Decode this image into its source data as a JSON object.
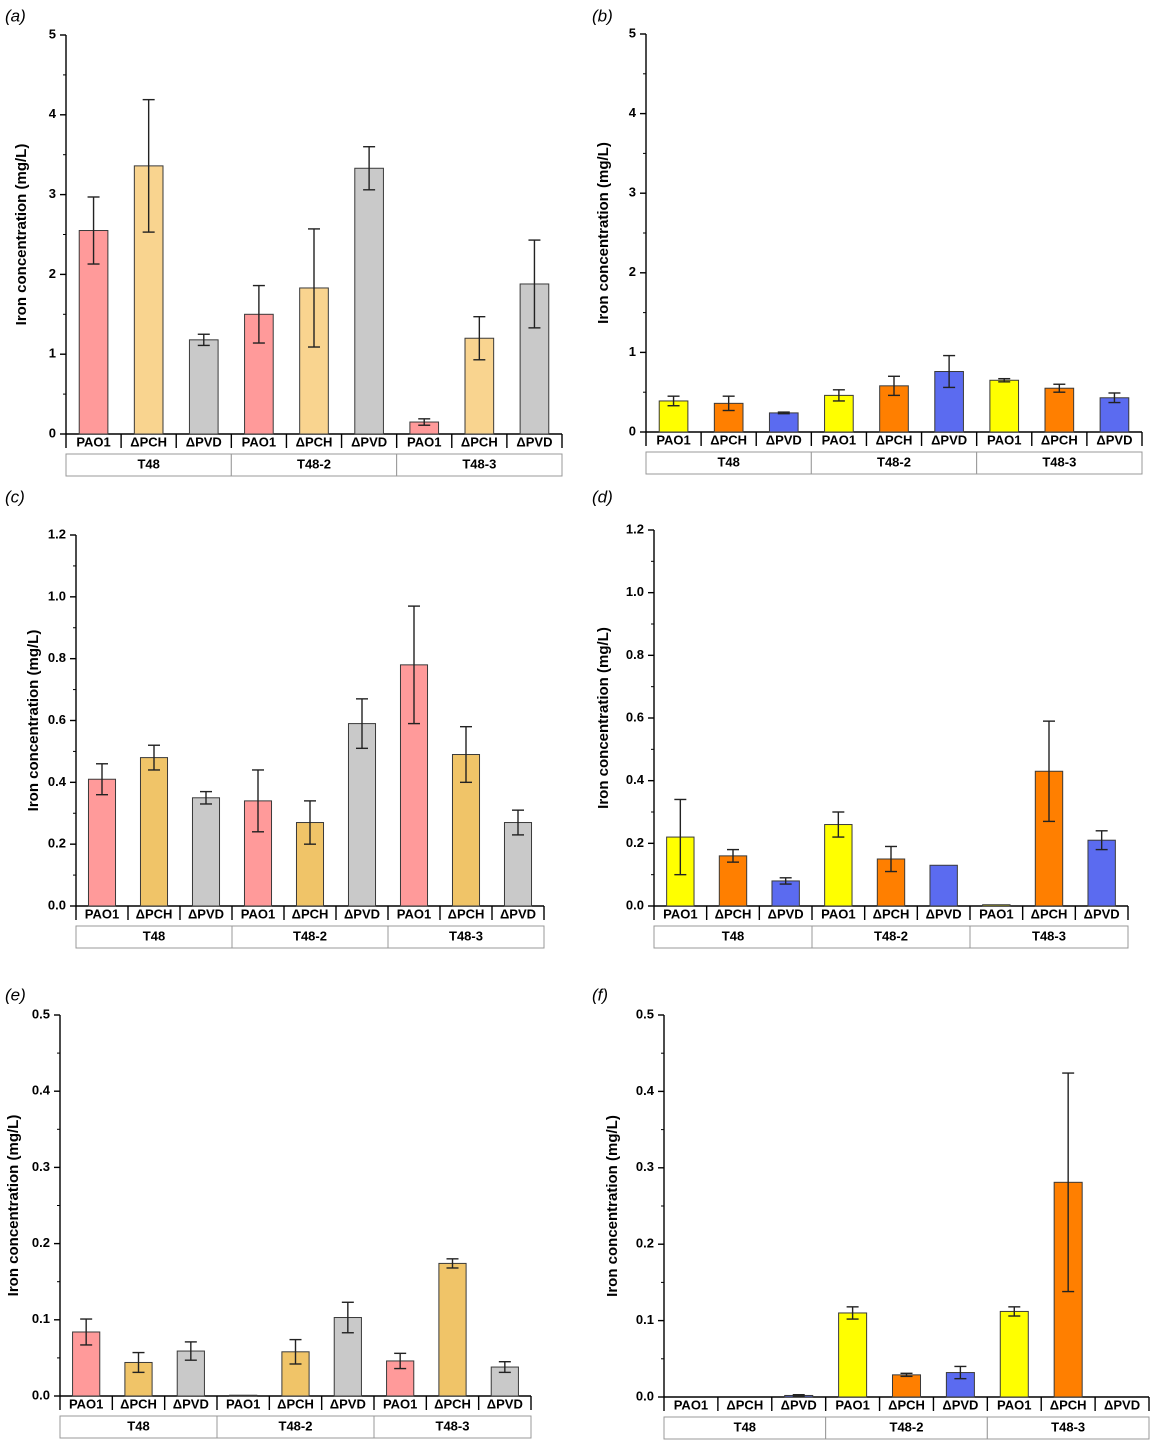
{
  "figure": {
    "y_axis_label": "Iron concentration (mg/L)",
    "category_labels": [
      "PAO1",
      "ΔPCH",
      "ΔPVD"
    ],
    "group_labels": [
      "T48",
      "T48-2",
      "T48-3"
    ]
  },
  "palettes": {
    "pastel": [
      "#ff9a9a",
      "#f9d48f",
      "#c9c9c9"
    ],
    "pastel2": [
      "#ff9a9a",
      "#f0c468",
      "#c9c9c9"
    ],
    "bright": [
      "#ffff00",
      "#ff7f00",
      "#5b6bf0"
    ]
  },
  "chart_data": [
    {
      "panel": "(a)",
      "type": "bar",
      "palette": "pastel",
      "ylim": [
        0,
        5
      ],
      "yticks": [
        "0",
        "1",
        "2",
        "3",
        "4",
        "5"
      ],
      "ylabel": "Iron concentration (mg/L)",
      "groups": [
        "T48",
        "T48-2",
        "T48-3"
      ],
      "categories": [
        "PAO1",
        "ΔPCH",
        "ΔPVD"
      ],
      "values": [
        [
          2.55,
          3.36,
          1.18
        ],
        [
          1.5,
          1.83,
          3.33
        ],
        [
          0.15,
          1.2,
          1.88
        ]
      ],
      "errors": [
        [
          0.42,
          0.83,
          0.07
        ],
        [
          0.36,
          0.74,
          0.27
        ],
        [
          0.04,
          0.27,
          0.55
        ]
      ]
    },
    {
      "panel": "(b)",
      "type": "bar",
      "palette": "bright",
      "ylim": [
        0,
        5
      ],
      "yticks": [
        "0",
        "1",
        "2",
        "3",
        "4",
        "5"
      ],
      "ylabel": "Iron concentration (mg/L)",
      "groups": [
        "T48",
        "T48-2",
        "T48-3"
      ],
      "categories": [
        "PAO1",
        "ΔPCH",
        "ΔPVD"
      ],
      "values": [
        [
          0.39,
          0.36,
          0.24
        ],
        [
          0.46,
          0.58,
          0.76
        ],
        [
          0.65,
          0.55,
          0.43
        ]
      ],
      "errors": [
        [
          0.06,
          0.09,
          0.01
        ],
        [
          0.07,
          0.12,
          0.2
        ],
        [
          0.02,
          0.05,
          0.06
        ]
      ]
    },
    {
      "panel": "(c)",
      "type": "bar",
      "palette": "pastel2",
      "ylim": [
        0,
        1.2
      ],
      "yticks": [
        "0.0",
        "0.2",
        "0.4",
        "0.6",
        "0.8",
        "1.0",
        "1.2"
      ],
      "ylabel": "Iron concentration (mg/L)",
      "groups": [
        "T48",
        "T48-2",
        "T48-3"
      ],
      "categories": [
        "PAO1",
        "ΔPCH",
        "ΔPVD"
      ],
      "values": [
        [
          0.41,
          0.48,
          0.35
        ],
        [
          0.34,
          0.27,
          0.59
        ],
        [
          0.78,
          0.49,
          0.27
        ]
      ],
      "errors": [
        [
          0.05,
          0.04,
          0.02
        ],
        [
          0.1,
          0.07,
          0.08
        ],
        [
          0.19,
          0.09,
          0.04
        ]
      ]
    },
    {
      "panel": "(d)",
      "type": "bar",
      "palette": "bright",
      "ylim": [
        0,
        1.2
      ],
      "yticks": [
        "0.0",
        "0.2",
        "0.4",
        "0.6",
        "0.8",
        "1.0",
        "1.2"
      ],
      "ylabel": "Iron concentration (mg/L)",
      "groups": [
        "T48",
        "T48-2",
        "T48-3"
      ],
      "categories": [
        "PAO1",
        "ΔPCH",
        "ΔPVD"
      ],
      "values": [
        [
          0.22,
          0.16,
          0.08
        ],
        [
          0.26,
          0.15,
          0.13
        ],
        [
          0.004,
          0.43,
          0.21
        ]
      ],
      "errors": [
        [
          0.12,
          0.02,
          0.01
        ],
        [
          0.04,
          0.04,
          0.0
        ],
        [
          0.0,
          0.16,
          0.03
        ]
      ]
    },
    {
      "panel": "(e)",
      "type": "bar",
      "palette": "pastel2",
      "ylim": [
        0,
        0.5
      ],
      "yticks": [
        "0.0",
        "0.1",
        "0.2",
        "0.3",
        "0.4",
        "0.5"
      ],
      "ylabel": "Iron concentration (mg/L)",
      "groups": [
        "T48",
        "T48-2",
        "T48-3"
      ],
      "categories": [
        "PAO1",
        "ΔPCH",
        "ΔPVD"
      ],
      "values": [
        [
          0.084,
          0.044,
          0.059
        ],
        [
          0.001,
          0.058,
          0.103
        ],
        [
          0.046,
          0.174,
          0.038
        ]
      ],
      "errors": [
        [
          0.017,
          0.013,
          0.012
        ],
        [
          0.0,
          0.016,
          0.02
        ],
        [
          0.01,
          0.006,
          0.007
        ]
      ]
    },
    {
      "panel": "(f)",
      "type": "bar",
      "palette": "bright",
      "ylim": [
        0,
        0.5
      ],
      "yticks": [
        "0.0",
        "0.1",
        "0.2",
        "0.3",
        "0.4",
        "0.5"
      ],
      "ylabel": "Iron concentration (mg/L)",
      "groups": [
        "T48",
        "T48-2",
        "T48-3"
      ],
      "categories": [
        "PAO1",
        "ΔPCH",
        "ΔPVD"
      ],
      "values": [
        [
          0.0005,
          0.0005,
          0.002
        ],
        [
          0.11,
          0.029,
          0.032
        ],
        [
          0.112,
          0.281,
          0.0005
        ]
      ],
      "errors": [
        [
          0.0,
          0.0,
          0.001
        ],
        [
          0.008,
          0.002,
          0.008
        ],
        [
          0.006,
          0.143,
          0.0
        ]
      ]
    }
  ]
}
